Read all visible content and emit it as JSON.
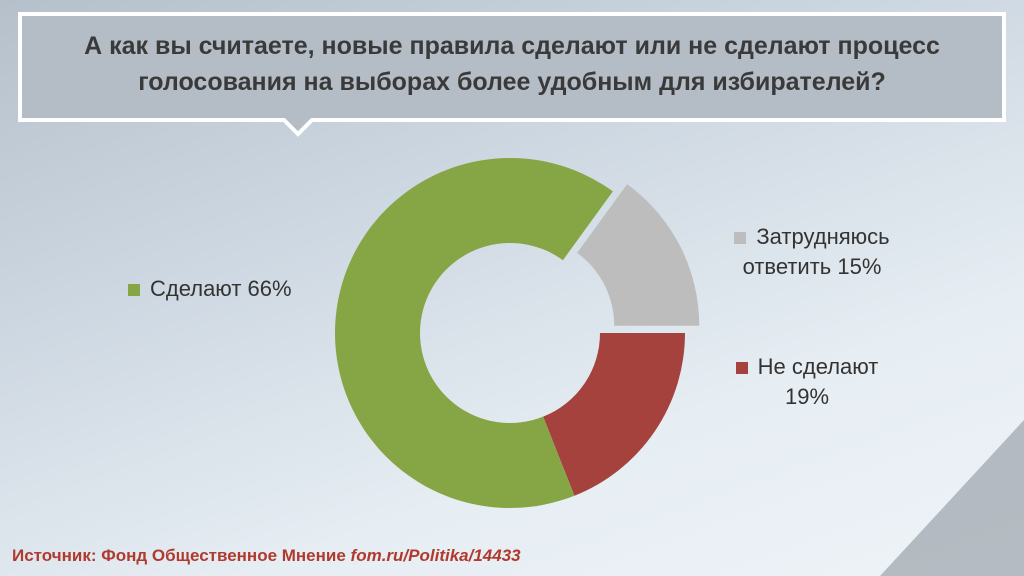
{
  "chart_data": {
    "type": "donut",
    "title": "А как вы считаете, новые правила сделают или не сделают процесс голосования на выборах более удобным для избирателей?",
    "categories": [
      "Не сделают",
      "Сделают",
      "Затрудняюсь ответить"
    ],
    "values": [
      19,
      66,
      15
    ],
    "value_labels": [
      "19%",
      "66%",
      "15%"
    ],
    "colors": [
      "#a5423e",
      "#86a544",
      "#bdbdbd"
    ],
    "source": {
      "text": "Источник: Фонд Общественное Мнение",
      "link": "fom.ru/Politika/14433"
    }
  }
}
